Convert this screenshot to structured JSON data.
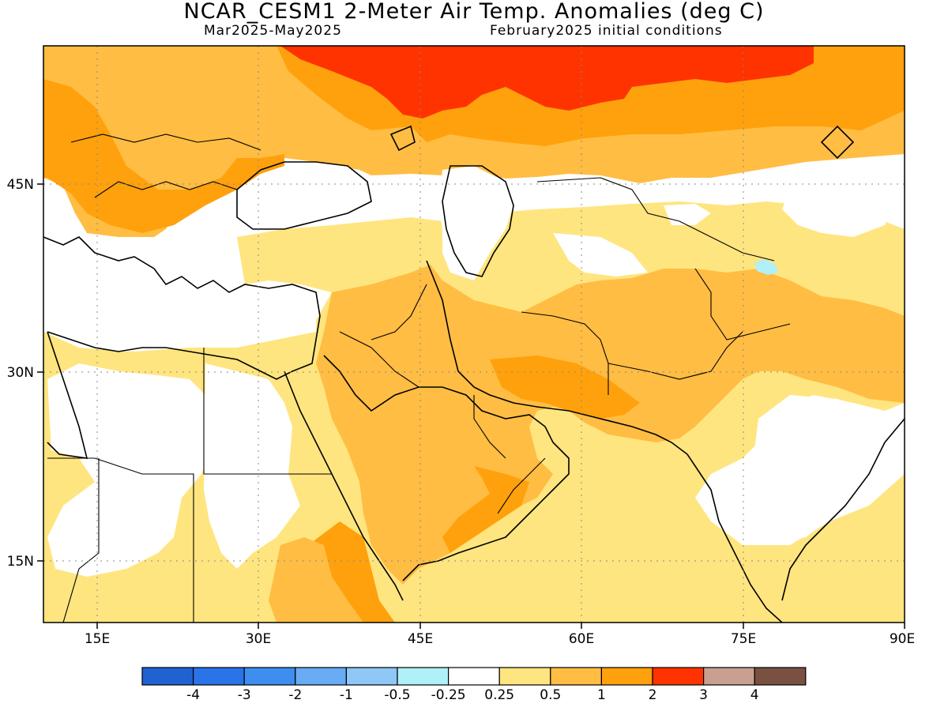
{
  "title": "NCAR_CESM1 2-Meter Air Temp. Anomalies (deg C)",
  "subtitle_left": "Mar2025-May2025",
  "subtitle_right": "February2025 initial conditions",
  "map": {
    "projection": "cylindrical equidistant",
    "lon_range": [
      10,
      90
    ],
    "lat_range": [
      10,
      55
    ],
    "lon_ticks": [
      "15E",
      "30E",
      "45E",
      "60E",
      "75E",
      "90E"
    ],
    "lat_ticks": [
      "45N",
      "30N",
      "15N"
    ],
    "grid": "dotted",
    "colors": {
      "land_neutral": "#ffffff",
      "c_025_05": "#ffe57f",
      "c_05_1": "#ffbd43",
      "c_1_2": "#ffa10c",
      "c_2_3": "#ff3300",
      "c_neg_05_025": "#b0f0f8"
    }
  },
  "colorbar": {
    "labels": [
      "-4",
      "-3",
      "-2",
      "-1",
      "-0.5",
      "-0.25",
      "0.25",
      "0.5",
      "1",
      "2",
      "3",
      "4"
    ],
    "colors": [
      "#1f62d0",
      "#2a73e8",
      "#3d8eef",
      "#69abf4",
      "#8fc7f6",
      "#b0f0f8",
      "#ffffff",
      "#ffe57f",
      "#ffbd43",
      "#ffa10c",
      "#ff3300",
      "#c9a08f",
      "#7a5140"
    ]
  }
}
